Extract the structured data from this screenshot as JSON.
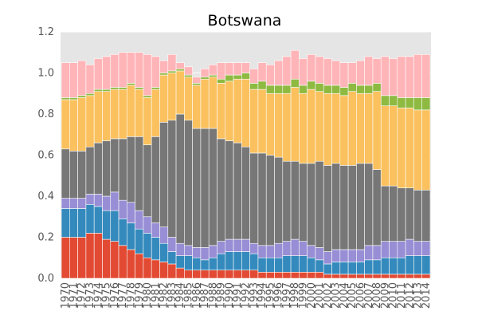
{
  "chart_data": {
    "type": "bar",
    "stacked": true,
    "title": "Botswana",
    "ylim": [
      0,
      1.2
    ],
    "yticks": [
      "0.0",
      "0.2",
      "0.4",
      "0.6",
      "0.8",
      "1.0",
      "1.2"
    ],
    "ytick_values": [
      0,
      0.2,
      0.4,
      0.6,
      0.8,
      1.0,
      1.2
    ],
    "grid": true,
    "background": "#e5e5e5",
    "categories": [
      "1970",
      "1971",
      "1972",
      "1973",
      "1974",
      "1975",
      "1976",
      "1977",
      "1978",
      "1979",
      "1980",
      "1981",
      "1982",
      "1983",
      "1984",
      "1985",
      "1986",
      "1987",
      "1988",
      "1989",
      "1990",
      "1991",
      "1992",
      "1993",
      "1994",
      "1995",
      "1996",
      "1997",
      "1998",
      "1999",
      "2000",
      "2001",
      "2002",
      "2003",
      "2004",
      "2005",
      "2006",
      "2007",
      "2008",
      "2009",
      "2010",
      "2011",
      "2012",
      "2013",
      "2014"
    ],
    "series": [
      {
        "color": "#e24a33",
        "values": [
          0.2,
          0.2,
          0.2,
          0.22,
          0.22,
          0.19,
          0.18,
          0.16,
          0.14,
          0.12,
          0.1,
          0.09,
          0.08,
          0.07,
          0.05,
          0.04,
          0.04,
          0.04,
          0.04,
          0.04,
          0.04,
          0.04,
          0.04,
          0.04,
          0.03,
          0.03,
          0.03,
          0.03,
          0.03,
          0.03,
          0.03,
          0.03,
          0.02,
          0.02,
          0.02,
          0.02,
          0.02,
          0.02,
          0.02,
          0.02,
          0.02,
          0.02,
          0.02,
          0.02,
          0.02
        ]
      },
      {
        "color": "#348abd",
        "values": [
          0.14,
          0.14,
          0.14,
          0.14,
          0.13,
          0.14,
          0.15,
          0.13,
          0.13,
          0.12,
          0.12,
          0.11,
          0.09,
          0.06,
          0.06,
          0.07,
          0.06,
          0.05,
          0.06,
          0.08,
          0.09,
          0.09,
          0.09,
          0.08,
          0.07,
          0.07,
          0.07,
          0.08,
          0.08,
          0.08,
          0.07,
          0.06,
          0.05,
          0.06,
          0.06,
          0.06,
          0.06,
          0.07,
          0.07,
          0.08,
          0.08,
          0.08,
          0.09,
          0.09,
          0.09
        ]
      },
      {
        "color": "#988ed5",
        "values": [
          0.05,
          0.05,
          0.05,
          0.05,
          0.06,
          0.07,
          0.09,
          0.09,
          0.1,
          0.09,
          0.08,
          0.07,
          0.08,
          0.07,
          0.06,
          0.05,
          0.05,
          0.06,
          0.06,
          0.06,
          0.06,
          0.06,
          0.06,
          0.05,
          0.06,
          0.06,
          0.07,
          0.07,
          0.08,
          0.07,
          0.06,
          0.06,
          0.06,
          0.06,
          0.06,
          0.06,
          0.06,
          0.07,
          0.07,
          0.08,
          0.08,
          0.08,
          0.08,
          0.07,
          0.07
        ]
      },
      {
        "color": "#777777",
        "values": [
          0.24,
          0.23,
          0.23,
          0.23,
          0.25,
          0.27,
          0.26,
          0.3,
          0.32,
          0.36,
          0.35,
          0.42,
          0.51,
          0.57,
          0.63,
          0.61,
          0.58,
          0.58,
          0.57,
          0.5,
          0.48,
          0.47,
          0.45,
          0.44,
          0.45,
          0.44,
          0.42,
          0.39,
          0.38,
          0.38,
          0.4,
          0.42,
          0.42,
          0.42,
          0.41,
          0.41,
          0.42,
          0.4,
          0.37,
          0.27,
          0.27,
          0.26,
          0.25,
          0.25,
          0.25
        ]
      },
      {
        "color": "#fbc15e",
        "values": [
          0.24,
          0.25,
          0.26,
          0.25,
          0.25,
          0.24,
          0.24,
          0.24,
          0.25,
          0.23,
          0.23,
          0.23,
          0.23,
          0.23,
          0.21,
          0.21,
          0.21,
          0.24,
          0.25,
          0.27,
          0.29,
          0.31,
          0.33,
          0.31,
          0.31,
          0.3,
          0.31,
          0.33,
          0.36,
          0.34,
          0.36,
          0.34,
          0.35,
          0.34,
          0.34,
          0.36,
          0.34,
          0.34,
          0.38,
          0.39,
          0.39,
          0.39,
          0.39,
          0.39,
          0.39
        ]
      },
      {
        "color": "#8eba42",
        "values": [
          0.01,
          0.01,
          0.01,
          0.01,
          0.01,
          0.01,
          0.01,
          0.01,
          0.01,
          0.01,
          0.01,
          0.01,
          0.01,
          0.01,
          0.01,
          0.01,
          0.01,
          0.01,
          0.01,
          0.02,
          0.03,
          0.02,
          0.03,
          0.03,
          0.04,
          0.04,
          0.04,
          0.04,
          0.04,
          0.04,
          0.04,
          0.04,
          0.04,
          0.04,
          0.04,
          0.04,
          0.04,
          0.04,
          0.04,
          0.05,
          0.05,
          0.05,
          0.05,
          0.06,
          0.06
        ]
      },
      {
        "color": "#ffb5b8",
        "values": [
          0.17,
          0.17,
          0.17,
          0.14,
          0.15,
          0.16,
          0.16,
          0.17,
          0.15,
          0.17,
          0.2,
          0.15,
          0.06,
          0.08,
          0.03,
          0.04,
          0.03,
          0.04,
          0.05,
          0.08,
          0.06,
          0.06,
          0.05,
          0.07,
          0.09,
          0.1,
          0.12,
          0.14,
          0.14,
          0.13,
          0.13,
          0.13,
          0.13,
          0.12,
          0.12,
          0.1,
          0.12,
          0.14,
          0.12,
          0.19,
          0.18,
          0.2,
          0.2,
          0.21,
          0.21
        ]
      }
    ]
  }
}
